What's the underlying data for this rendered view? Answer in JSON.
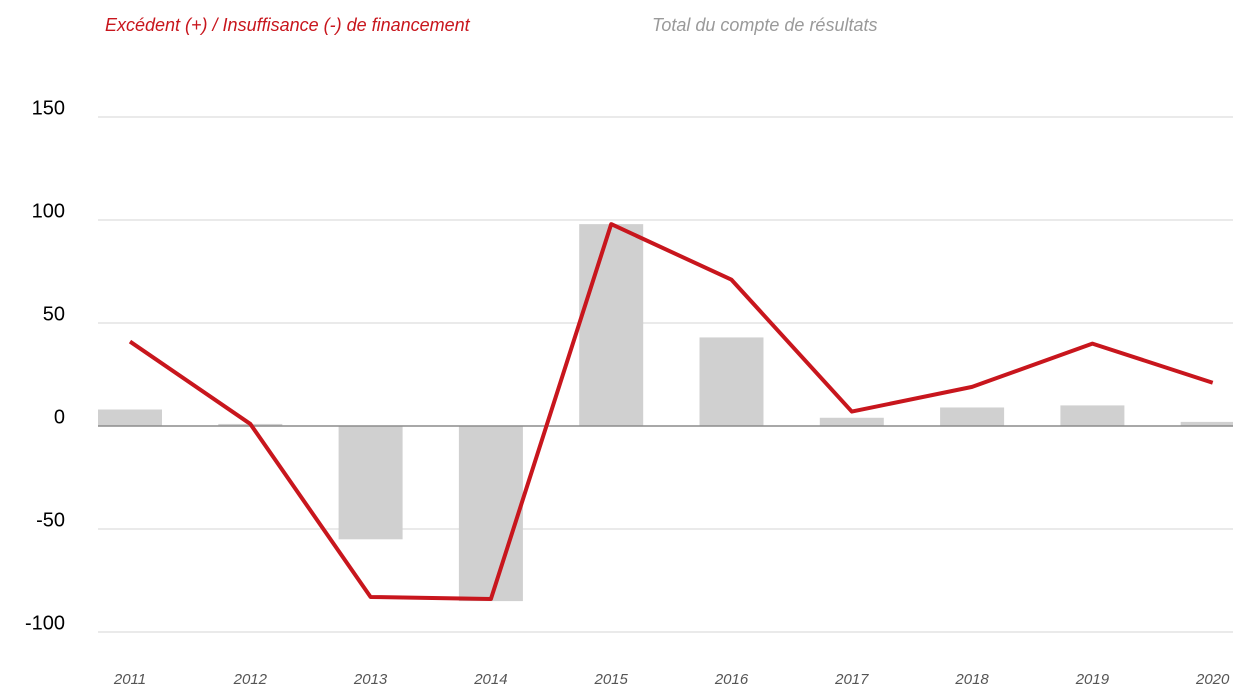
{
  "chart_data": {
    "type": "combo",
    "categories": [
      "2011",
      "2012",
      "2013",
      "2014",
      "2015",
      "2016",
      "2017",
      "2018",
      "2019",
      "2020"
    ],
    "series": [
      {
        "name": "Excédent (+) / Insuffisance (-) de financement",
        "type": "line",
        "color": "#c8161d",
        "values": [
          41,
          1,
          -83,
          -84,
          98,
          71,
          7,
          19,
          40,
          21
        ]
      },
      {
        "name": "Total du compte de résultats",
        "type": "bar",
        "color": "#d0d0d0",
        "values": [
          8,
          1,
          -55,
          -85,
          98,
          43,
          4,
          9,
          10,
          2
        ]
      }
    ],
    "ylim": [
      -100,
      150
    ],
    "yticks": [
      -100,
      -50,
      0,
      50,
      100,
      150
    ],
    "grid": true
  }
}
